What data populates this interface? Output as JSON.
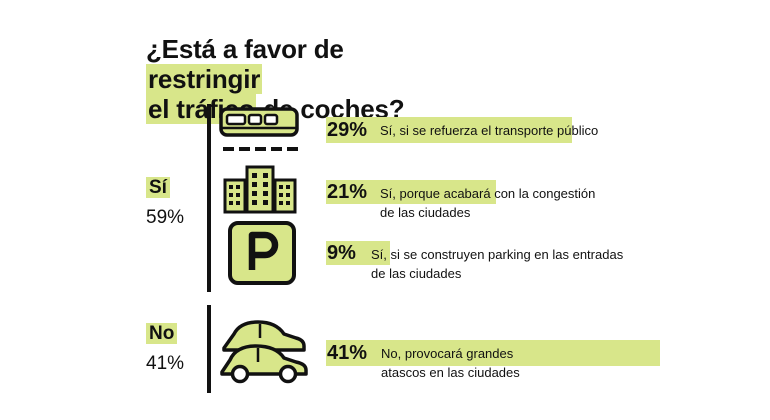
{
  "title": {
    "line1_pre": "¿Está a favor de ",
    "line1_hl": "restringir",
    "line2_hl": "el tráfico",
    "line2_post": " de coches?"
  },
  "groups": {
    "yes": {
      "label": "Sí",
      "percent": "59%"
    },
    "no": {
      "label": "No",
      "percent": "41%"
    }
  },
  "rows": [
    {
      "pct": "29%",
      "line1": "Sí, si se refuerza el transporte público",
      "line2": "",
      "icon": "train-icon"
    },
    {
      "pct": "21%",
      "line1": "Sí, porque acabará con la congestión",
      "line2": "de las ciudades",
      "icon": "buildings-icon"
    },
    {
      "pct": "9%",
      "line1": "Sí, si se construyen parking en las entradas",
      "line2": "de las ciudades",
      "icon": "parking-icon"
    },
    {
      "pct": "41%",
      "line1": "No, provocará grandes",
      "line2": "atascos en las ciudades",
      "icon": "cars-icon"
    }
  ],
  "colors": {
    "accent": "#d8e68a",
    "ink": "#111111"
  },
  "chart_data": {
    "type": "bar",
    "title": "¿Está a favor de restringir el tráfico de coches?",
    "groups": [
      {
        "name": "Sí",
        "value": 59
      },
      {
        "name": "No",
        "value": 41
      }
    ],
    "categories": [
      "Sí, si se refuerza el transporte público",
      "Sí, porque acabará con la congestión de las ciudades",
      "Sí, si se construyen parking en las entradas de las ciudades",
      "No, provocará grandes atascos en las ciudades"
    ],
    "values": [
      29,
      21,
      9,
      41
    ],
    "unit": "%"
  }
}
